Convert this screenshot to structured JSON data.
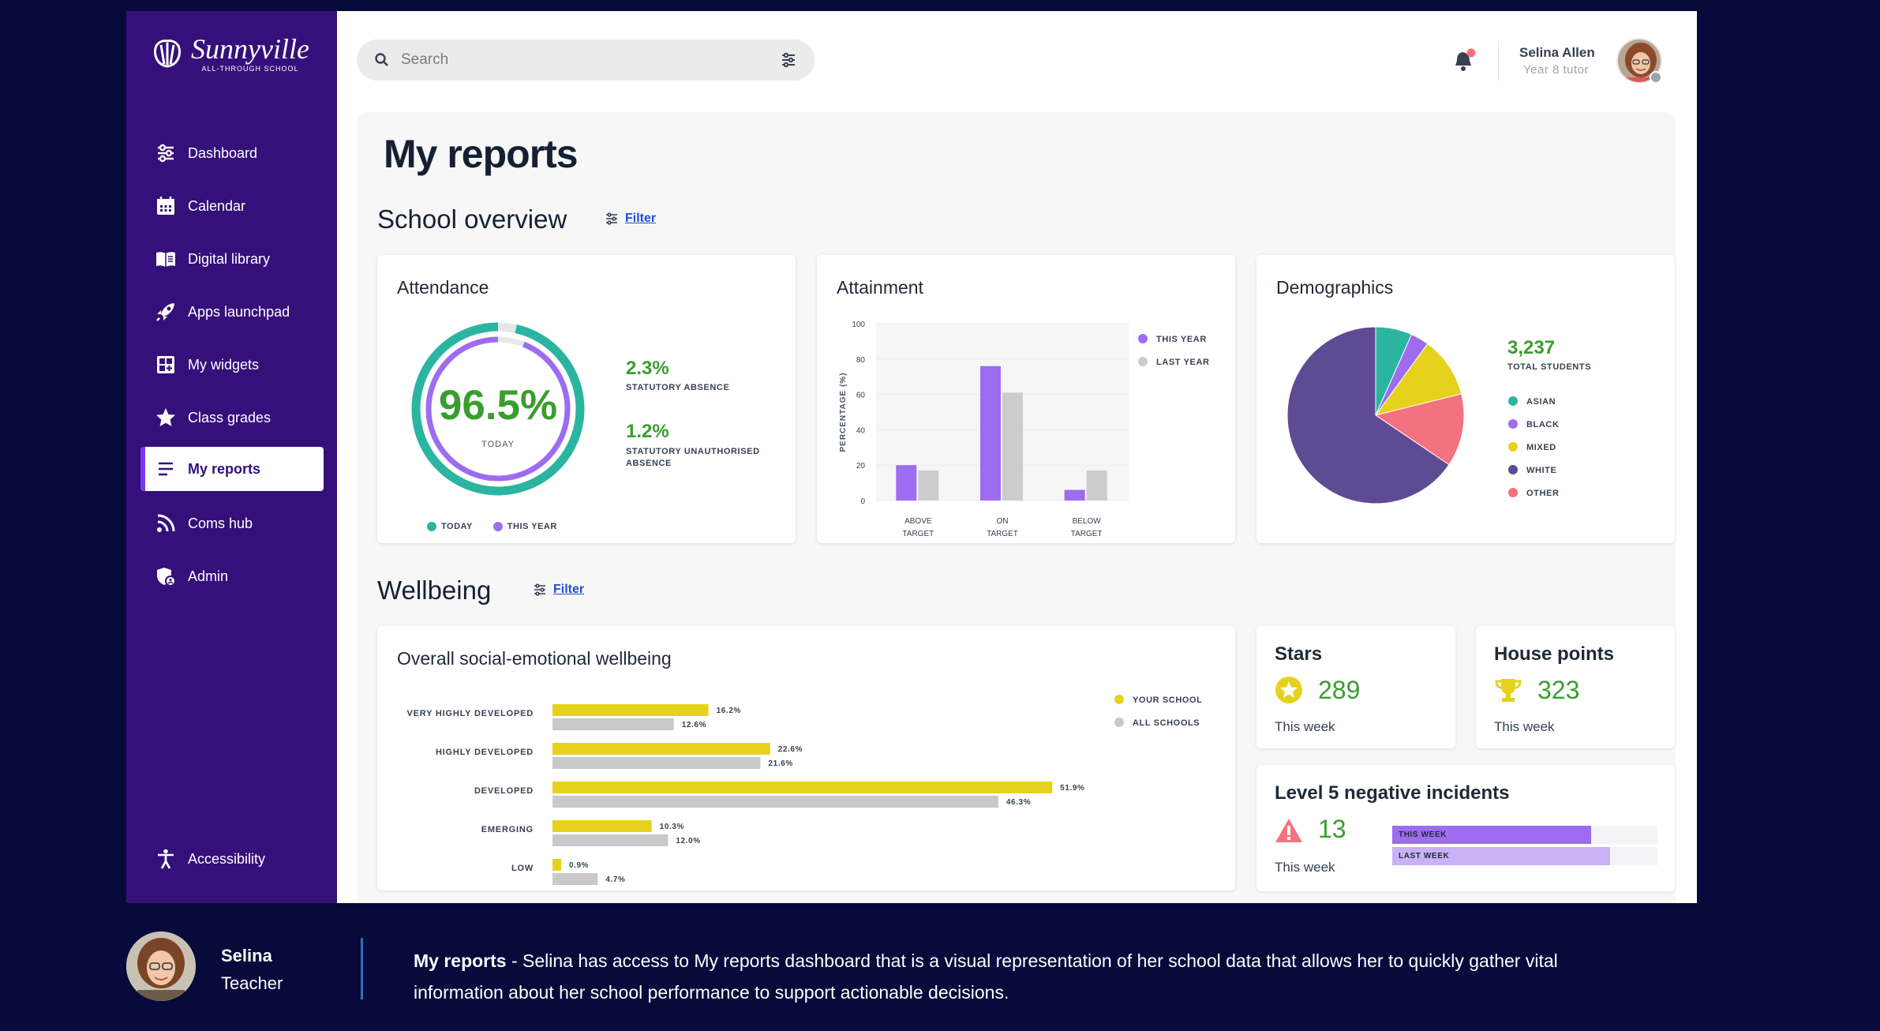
{
  "brand": {
    "name": "Sunnyville",
    "tagline": "ALL-THROUGH SCHOOL"
  },
  "sidebar": {
    "items": [
      {
        "label": "Dashboard",
        "icon": "sliders-icon"
      },
      {
        "label": "Calendar",
        "icon": "calendar-icon"
      },
      {
        "label": "Digital library",
        "icon": "book-icon"
      },
      {
        "label": "Apps launchpad",
        "icon": "rocket-icon"
      },
      {
        "label": "My widgets",
        "icon": "widgets-icon"
      },
      {
        "label": "Class grades",
        "icon": "star-icon"
      },
      {
        "label": "My reports",
        "icon": "list-icon",
        "active": true
      },
      {
        "label": "Coms hub",
        "icon": "rss-icon"
      },
      {
        "label": "Admin",
        "icon": "admin-icon"
      }
    ],
    "accessibility": "Accessibility"
  },
  "search": {
    "placeholder": "Search"
  },
  "user": {
    "name": "Selina Allen",
    "role": "Year 8 tutor"
  },
  "page": {
    "title": "My reports"
  },
  "school_overview": {
    "title": "School overview",
    "filter": "Filter",
    "attendance": {
      "title": "Attendance",
      "value": "96.5%",
      "value_label": "TODAY",
      "today_fraction": 0.965,
      "year_fraction": 0.94,
      "stat1_value": "2.3%",
      "stat1_label": "STATUTORY ABSENCE",
      "stat2_value": "1.2%",
      "stat2_label_line1": "STATUTORY UNAUTHORISED",
      "stat2_label_line2": "ABSENCE",
      "legend_today": "TODAY",
      "legend_year": "THIS YEAR"
    },
    "attainment": {
      "title": "Attainment"
    },
    "demographics": {
      "title": "Demographics",
      "total": "3,237",
      "total_label": "TOTAL STUDENTS"
    }
  },
  "wellbeing": {
    "title": "Wellbeing",
    "filter": "Filter",
    "overall": {
      "title": "Overall social-emotional wellbeing"
    },
    "stars": {
      "title": "Stars",
      "value": "289",
      "period": "This week"
    },
    "house_points": {
      "title": "House points",
      "value": "323",
      "period": "This week"
    },
    "incidents": {
      "title": "Level 5 negative incidents",
      "value": "13",
      "period": "This week",
      "this_week_label": "THIS WEEK",
      "last_week_label": "LAST WEEK",
      "this_week_fraction": 0.75,
      "last_week_fraction": 0.82
    }
  },
  "caption": {
    "name": "Selina",
    "role": "Teacher",
    "heading": "My reports",
    "text": " - Selina has access to My reports dashboard that is a visual representation of her school data that allows her to quickly gather vital information about her school performance to support actionable decisions."
  },
  "colors": {
    "sidebar": "#35107a",
    "accent": "#7c3aed",
    "teal": "#2ab5a0",
    "purple": "#9d6cf0",
    "grey": "#c9c9c9",
    "yellow": "#e6d21c",
    "pink": "#f4717f",
    "dark_purple": "#5e4b94",
    "green": "#3a9e2e"
  },
  "chart_data": [
    {
      "type": "bar",
      "name": "attainment",
      "categories": [
        "ABOVE TARGET",
        "ON TARGET",
        "BELOW TARGET"
      ],
      "series": [
        {
          "name": "THIS YEAR",
          "values": [
            20,
            76,
            6
          ]
        },
        {
          "name": "LAST YEAR",
          "values": [
            17,
            61,
            17
          ]
        }
      ],
      "ylabel": "PERCENTAGE (%)",
      "ylim": [
        0,
        100
      ],
      "yticks": [
        0,
        20,
        40,
        60,
        80,
        100
      ],
      "legend": "right"
    },
    {
      "type": "pie",
      "name": "demographics",
      "labels": [
        "ASIAN",
        "BLACK",
        "MIXED",
        "WHITE",
        "OTHER"
      ],
      "values": [
        6,
        3,
        10,
        59,
        12
      ],
      "legend": "right"
    },
    {
      "type": "bar",
      "orientation": "horizontal",
      "name": "social-emotional wellbeing",
      "categories": [
        "VERY HIGHLY DEVELOPED",
        "HIGHLY DEVELOPED",
        "DEVELOPED",
        "EMERGING",
        "LOW"
      ],
      "series": [
        {
          "name": "YOUR SCHOOL",
          "values": [
            16.2,
            22.6,
            51.9,
            10.3,
            0.9
          ],
          "labels": [
            "16.2%",
            "22.6%",
            "51.9%",
            "10.3%",
            "0.9%"
          ]
        },
        {
          "name": "ALL SCHOOLS",
          "values": [
            12.6,
            21.6,
            46.3,
            12.0,
            4.7
          ],
          "labels": [
            "12.6%",
            "21.6%",
            "46.3%",
            "12.0%",
            "4.7%"
          ]
        }
      ],
      "legend": "top-right"
    }
  ]
}
